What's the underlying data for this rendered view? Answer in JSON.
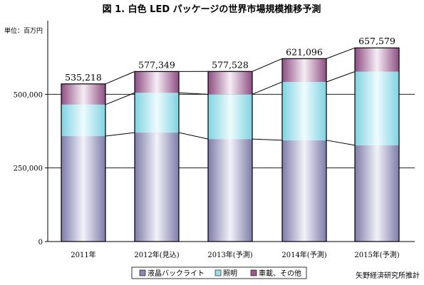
{
  "chart_data": {
    "type": "bar",
    "stacked": true,
    "title": "図 1. 白色 LED パッケージの世界市場規模推移予測",
    "unit_label": "単位：百万円",
    "categories": [
      "2011年",
      "2012年(見込)",
      "2013年(予測)",
      "2014年(予測)",
      "2015年(予測)"
    ],
    "series": [
      {
        "name": "液晶バックライト",
        "values": [
          358000,
          370000,
          348000,
          344000,
          327000
        ],
        "color": "#8a88b4"
      },
      {
        "name": "照明",
        "values": [
          107000,
          135000,
          152000,
          198000,
          250000
        ],
        "color": "#9fdde8"
      },
      {
        "name": "車載、その他",
        "values": [
          70218,
          72349,
          77528,
          79096,
          80579
        ],
        "color": "#9a5a8c"
      }
    ],
    "totals": [
      "535,218",
      "577,349",
      "577,528",
      "621,096",
      "657,579"
    ],
    "ylim": [
      0,
      750000
    ],
    "yticks": [
      {
        "value": 0,
        "label": "0"
      },
      {
        "value": 250000,
        "label": "250,000"
      },
      {
        "value": 500000,
        "label": "500,000"
      }
    ],
    "grid": true,
    "legend_position": "bottom"
  },
  "source": "矢野経済研究所推計"
}
